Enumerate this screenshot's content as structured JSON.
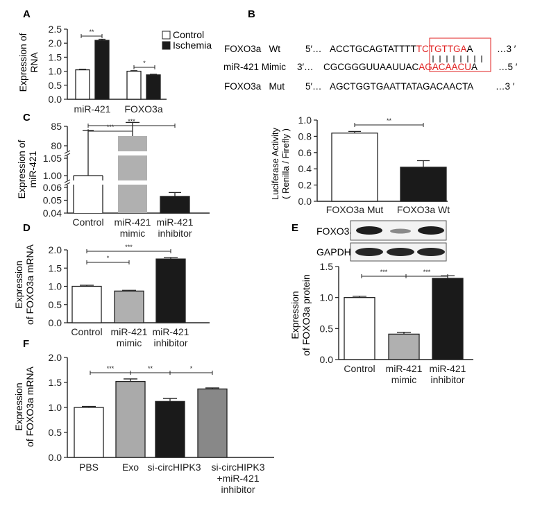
{
  "colors": {
    "control": "#ffffff",
    "ischemia": "#1a1a1a",
    "mimic": "#b0b0b0",
    "inhibitor": "#1a1a1a",
    "exo": "#aaaaaa",
    "si": "#1a1a1a",
    "combo": "#888888",
    "highlight": "#e02020",
    "text": "#222222"
  },
  "panels": {
    "A": {
      "label": "A",
      "ylabel_lines": [
        "Expression of",
        "RNA"
      ],
      "legend": [
        {
          "label": "Control",
          "color": "#ffffff"
        },
        {
          "label": "Ischemia",
          "color": "#1a1a1a"
        }
      ]
    },
    "B": {
      "label": "B",
      "rows": [
        {
          "name": "FOXO3a   Wt",
          "p5": "5′…",
          "seq_a": "ACCTGCAGTATTTT",
          "seq_hl": "TCTGTTGA",
          "seq_b": "A",
          "end": "…3 ′"
        },
        {
          "name": "miR-421 Mimic",
          "p5": "3′…",
          "seq_a": "CGCGGGUUAAUUAC",
          "seq_hl": "AGACAACU",
          "seq_b": "A",
          "end": "…5 ′"
        },
        {
          "name": "FOXO3a   Mut",
          "p5": "5′…",
          "seq_a": "AGCTGGTGAATTATAGACAACTA",
          "seq_hl": "",
          "seq_b": "",
          "end": "…3 ′"
        }
      ],
      "ylabel_lines": [
        "Luciferase Activity",
        "( Renilla / Firefly )"
      ]
    },
    "C": {
      "label": "C",
      "ylabel_lines": [
        "Expression of",
        "miR-421"
      ]
    },
    "D": {
      "label": "D",
      "ylabel_lines": [
        "Expression",
        "of FOXO3a mRNA"
      ]
    },
    "E": {
      "label": "E",
      "blot_labels": [
        "FOXO3a",
        "GAPDH"
      ],
      "ylabel_lines": [
        "Expression",
        "of FOXO3a protein"
      ]
    },
    "F": {
      "label": "F",
      "ylabel_lines": [
        "Expression",
        "of FOXO3a mRNA"
      ]
    }
  },
  "chart_data": [
    {
      "panel": "A",
      "type": "bar",
      "categories": [
        "miR-421",
        "FOXO3a"
      ],
      "series": [
        {
          "name": "Control",
          "values": [
            1.05,
            1.0
          ],
          "errors": [
            0.02,
            0.02
          ]
        },
        {
          "name": "Ischemia",
          "values": [
            2.1,
            0.87
          ],
          "errors": [
            0.04,
            0.02
          ]
        }
      ],
      "ylim": [
        0,
        2.5
      ],
      "yticks": [
        "0.0",
        "0.5",
        "1.0",
        "1.5",
        "2.0",
        "2.5"
      ],
      "significance": [
        "**",
        "*"
      ]
    },
    {
      "panel": "B",
      "type": "bar",
      "categories": [
        "FOXO3a Mut",
        "FOXO3a Wt"
      ],
      "values": [
        0.84,
        0.42
      ],
      "errors": [
        0.02,
        0.08
      ],
      "ylim": [
        0,
        1.0
      ],
      "yticks": [
        "0.0",
        "0.2",
        "0.4",
        "0.6",
        "0.8",
        "1.0"
      ],
      "significance": [
        "**"
      ]
    },
    {
      "panel": "C",
      "type": "bar",
      "categories": [
        "Control",
        "miR-421|mimic",
        "miR-421|inhibitor"
      ],
      "values": [
        1.0,
        82.5,
        0.053
      ],
      "errors": [
        0.13,
        3.5,
        0.003
      ],
      "yaxis": "broken",
      "yticks": [
        "0.04",
        "0.05",
        "0.06",
        "1.00",
        "1.05",
        "80",
        "85"
      ],
      "significance": [
        "***",
        "***"
      ]
    },
    {
      "panel": "D",
      "type": "bar",
      "categories": [
        "Control",
        "miR-421|mimic",
        "miR-421|inhibitor"
      ],
      "values": [
        1.0,
        0.87,
        1.75
      ],
      "errors": [
        0.03,
        0.02,
        0.04
      ],
      "ylim": [
        0,
        2.0
      ],
      "yticks": [
        "0.0",
        "0.5",
        "1.0",
        "1.5",
        "2.0"
      ],
      "significance": [
        "*",
        "***"
      ]
    },
    {
      "panel": "E",
      "type": "bar",
      "categories": [
        "Control",
        "miR-421|mimic",
        "miR-421|inhibitor"
      ],
      "values": [
        1.0,
        0.41,
        1.31
      ],
      "errors": [
        0.02,
        0.03,
        0.04
      ],
      "ylim": [
        0,
        1.5
      ],
      "yticks": [
        "0.0",
        "0.5",
        "1.0",
        "1.5"
      ],
      "significance": [
        "***",
        "***"
      ]
    },
    {
      "panel": "F",
      "type": "bar",
      "categories": [
        "PBS",
        "Exo",
        "si-circHIPK3",
        "si-circHIPK3|+miR-421|inhibitor"
      ],
      "values": [
        1.0,
        1.52,
        1.12,
        1.37
      ],
      "errors": [
        0.02,
        0.05,
        0.06,
        0.02
      ],
      "ylim": [
        0,
        2.0
      ],
      "yticks": [
        "0.0",
        "0.5",
        "1.0",
        "1.5",
        "2.0"
      ],
      "significance": [
        "***",
        "**",
        "*"
      ]
    }
  ]
}
